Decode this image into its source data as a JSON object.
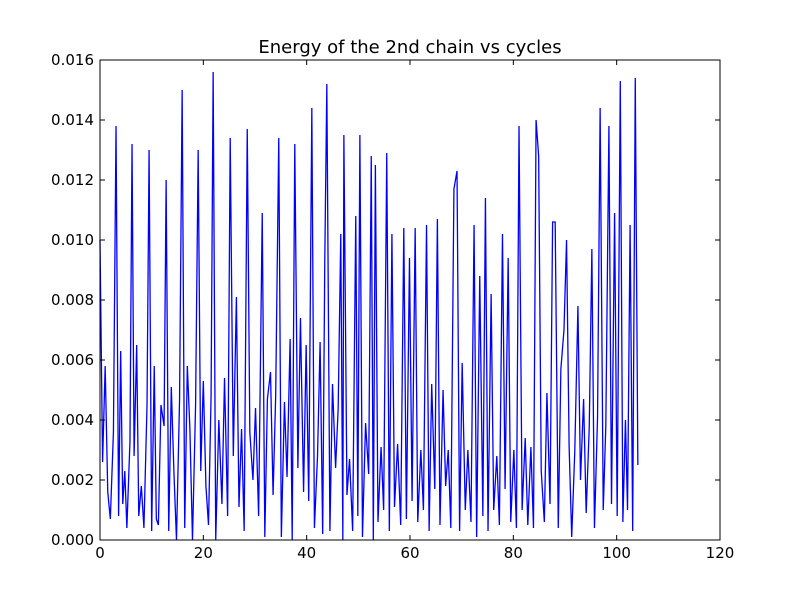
{
  "chart_data": {
    "type": "line",
    "title": "Energy of the 2nd chain vs cycles",
    "color": "#0000ff",
    "xlim": [
      0,
      120
    ],
    "xticks": [
      0,
      20,
      40,
      60,
      80,
      100,
      120
    ],
    "ylim": [
      0,
      0.016
    ],
    "yticks": [
      {
        "value": 0,
        "label": "0.000"
      },
      {
        "value": 0.002,
        "label": "0.002"
      },
      {
        "value": 0.004,
        "label": "0.004"
      },
      {
        "value": 0.006,
        "label": "0.006"
      },
      {
        "value": 0.008,
        "label": "0.008"
      },
      {
        "value": 0.01,
        "label": "0.010"
      },
      {
        "value": 0.012,
        "label": "0.012"
      },
      {
        "value": 0.014,
        "label": "0.014"
      },
      {
        "value": 0.016,
        "label": "0.016"
      }
    ],
    "grid": false,
    "x": [
      0,
      0.5,
      1.0,
      1.5,
      2.0,
      2.6,
      3.1,
      3.6,
      4.0,
      4.4,
      4.8,
      5.2,
      5.8,
      6.2,
      6.6,
      7.1,
      7.5,
      8.0,
      8.5,
      9.1,
      9.5,
      10.0,
      10.5,
      10.9,
      11.3,
      11.8,
      12.4,
      12.8,
      13.3,
      13.8,
      14.3,
      14.8,
      15.4,
      15.9,
      16.4,
      16.9,
      17.4,
      17.9,
      18.5,
      19.0,
      19.5,
      20.0,
      20.5,
      21.0,
      21.5,
      21.9,
      22.4,
      23.0,
      23.6,
      24.1,
      24.7,
      25.2,
      25.8,
      26.4,
      26.9,
      27.4,
      27.9,
      28.5,
      29.0,
      29.6,
      30.1,
      30.7,
      31.4,
      31.9,
      32.4,
      33.0,
      33.5,
      34.0,
      34.6,
      35.1,
      35.7,
      36.2,
      36.8,
      37.2,
      37.7,
      38.3,
      38.8,
      39.4,
      39.9,
      40.4,
      41.0,
      41.5,
      42.1,
      42.6,
      43.1,
      43.5,
      43.9,
      44.5,
      45.0,
      45.6,
      46.1,
      46.6,
      47.0,
      47.2,
      47.8,
      48.3,
      48.9,
      49.5,
      49.9,
      50.3,
      50.8,
      51.4,
      52.0,
      52.5,
      52.9,
      53.3,
      53.8,
      54.4,
      54.9,
      55.5,
      56.0,
      56.5,
      57.0,
      57.6,
      58.2,
      58.8,
      59.3,
      59.9,
      60.4,
      61.0,
      61.5,
      62.1,
      62.6,
      63.2,
      63.7,
      64.2,
      64.8,
      65.3,
      65.8,
      66.4,
      66.9,
      67.4,
      67.9,
      68.5,
      69.1,
      69.6,
      70.1,
      70.7,
      71.2,
      71.8,
      72.4,
      72.9,
      73.5,
      74.1,
      74.6,
      75.1,
      75.7,
      76.2,
      76.8,
      77.3,
      77.9,
      78.4,
      79.0,
      79.5,
      80.1,
      80.6,
      81.1,
      81.7,
      82.3,
      82.8,
      83.4,
      83.9,
      84.4,
      84.9,
      85.4,
      86.0,
      86.5,
      87.1,
      87.6,
      88.1,
      88.7,
      89.2,
      89.8,
      90.3,
      90.8,
      91.3,
      91.9,
      92.5,
      93.0,
      93.6,
      94.1,
      94.7,
      95.2,
      95.7,
      96.3,
      96.8,
      97.4,
      97.9,
      98.5,
      99.0,
      99.6,
      100.1,
      100.7,
      101.2,
      101.7,
      102.1,
      102.6,
      103.1,
      103.6,
      104.1
    ],
    "values": [
      0.01,
      0.0026,
      0.0058,
      0.0016,
      0.0007,
      0.0036,
      0.0138,
      0.0008,
      0.0063,
      0.0012,
      0.0023,
      0.0004,
      0.0033,
      0.0132,
      0.0028,
      0.0065,
      0.0008,
      0.0018,
      0.0004,
      0.0045,
      0.013,
      0.0003,
      0.0058,
      0.0007,
      0.0005,
      0.0045,
      0.0038,
      0.012,
      0.0003,
      0.0051,
      0.0023,
      0.0,
      0.0047,
      0.015,
      0.0004,
      0.0058,
      0.0037,
      0.0,
      0.0045,
      0.013,
      0.0023,
      0.0053,
      0.0018,
      0.0005,
      0.0048,
      0.0156,
      0.0,
      0.004,
      0.0012,
      0.0054,
      0.0008,
      0.0134,
      0.0028,
      0.0081,
      0.0011,
      0.0037,
      0.0003,
      0.0137,
      0.0036,
      0.002,
      0.0044,
      0.0008,
      0.0109,
      0.0001,
      0.0047,
      0.0056,
      0.0015,
      0.0048,
      0.0134,
      0.0001,
      0.0046,
      0.0021,
      0.0067,
      0.0,
      0.0132,
      0.0024,
      0.0074,
      0.0016,
      0.0065,
      0.0013,
      0.0144,
      0.0004,
      0.0028,
      0.0066,
      0.0002,
      0.0092,
      0.0152,
      0.0003,
      0.0052,
      0.0024,
      0.0044,
      0.0102,
      0.0,
      0.0135,
      0.0015,
      0.0027,
      0.0003,
      0.0108,
      0.0008,
      0.0135,
      0.0001,
      0.0039,
      0.0022,
      0.0128,
      0.0,
      0.0125,
      0.0006,
      0.0031,
      0.001,
      0.0129,
      0.0003,
      0.0102,
      0.0011,
      0.0032,
      0.0005,
      0.0104,
      0.0007,
      0.0094,
      0.0013,
      0.0104,
      0.0006,
      0.003,
      0.001,
      0.0105,
      0.0003,
      0.0052,
      0.0017,
      0.0107,
      0.0005,
      0.005,
      0.0018,
      0.003,
      0.0004,
      0.0117,
      0.0123,
      0.0003,
      0.0059,
      0.001,
      0.003,
      0.0006,
      0.0105,
      0.0001,
      0.0088,
      0.0008,
      0.0114,
      0.0003,
      0.0082,
      0.001,
      0.0028,
      0.0005,
      0.0102,
      0.0017,
      0.0094,
      0.0006,
      0.003,
      0.0004,
      0.0138,
      0.001,
      0.0034,
      0.0005,
      0.0031,
      0.0004,
      0.014,
      0.0128,
      0.0023,
      0.0006,
      0.0049,
      0.0012,
      0.0106,
      0.0106,
      0.0004,
      0.0057,
      0.007,
      0.01,
      0.0031,
      0.0001,
      0.003,
      0.0078,
      0.002,
      0.0047,
      0.0009,
      0.0038,
      0.0097,
      0.0004,
      0.0041,
      0.0144,
      0.001,
      0.0038,
      0.0138,
      0.0012,
      0.0109,
      0.0008,
      0.0153,
      0.0006,
      0.004,
      0.001,
      0.0105,
      0.0003,
      0.0154,
      0.0025
    ]
  }
}
